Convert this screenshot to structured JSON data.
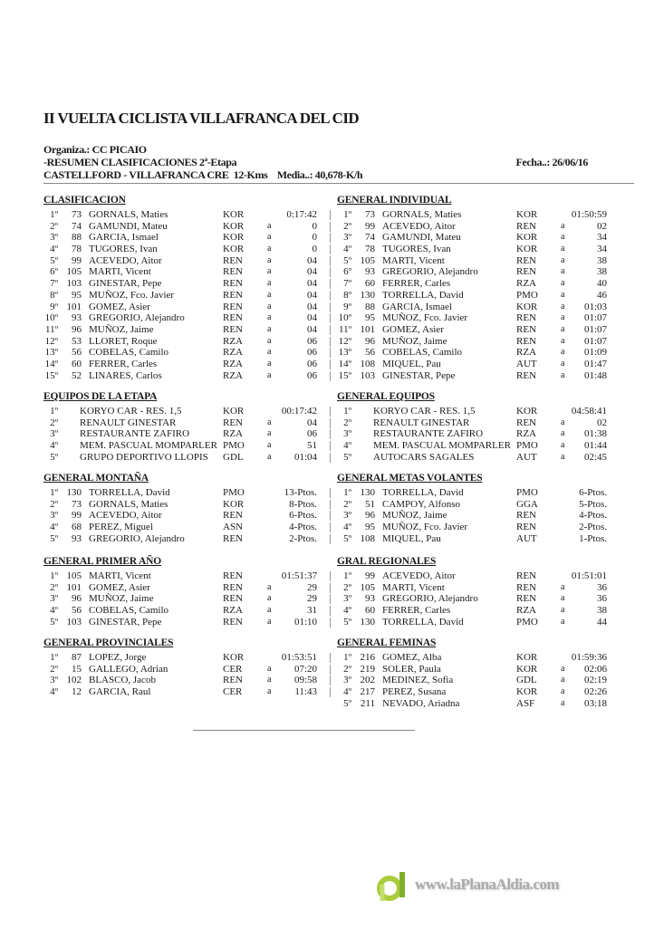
{
  "header": {
    "title": "II VUELTA CICLISTA VILLAFRANCA DEL CID",
    "organiza": "Organiza.: CC PICAIO",
    "resumen": "-RESUMEN CLASIFICACIONES 2ª-Etapa",
    "recorrido": "CASTELLFORD - VILLAFRANCA CRE  12-Kms    Media..: 40,678-K/h",
    "fecha": "Fecha..: 26/06/16"
  },
  "sections": {
    "clasificacion": {
      "title": "CLASIFICACION",
      "rows": [
        [
          "1º",
          "73",
          "GORNALS, Maties",
          "KOR",
          "",
          "0:17:42"
        ],
        [
          "2º",
          "74",
          "GAMUNDI, Mateu",
          "KOR",
          "a",
          "0"
        ],
        [
          "3º",
          "88",
          "GARCIA, Ismael",
          "KOR",
          "a",
          "0"
        ],
        [
          "4º",
          "78",
          "TUGORES, Ivan",
          "KOR",
          "a",
          "0"
        ],
        [
          "5º",
          "99",
          "ACEVEDO, Aitor",
          "REN",
          "a",
          "04"
        ],
        [
          "6º",
          "105",
          "MARTI, Vicent",
          "REN",
          "a",
          "04"
        ],
        [
          "7º",
          "103",
          "GINESTAR, Pepe",
          "REN",
          "a",
          "04"
        ],
        [
          "8º",
          "95",
          "MUÑOZ, Fco. Javier",
          "REN",
          "a",
          "04"
        ],
        [
          "9º",
          "101",
          "GOMEZ, Asier",
          "REN",
          "a",
          "04"
        ],
        [
          "10º",
          "93",
          "GREGORIO, Alejandro",
          "REN",
          "a",
          "04"
        ],
        [
          "11º",
          "96",
          "MUÑOZ, Jaime",
          "REN",
          "a",
          "04"
        ],
        [
          "12º",
          "53",
          "LLORET, Roque",
          "RZA",
          "a",
          "06"
        ],
        [
          "13º",
          "56",
          "COBELAS, Camilo",
          "RZA",
          "a",
          "06"
        ],
        [
          "14º",
          "60",
          "FERRER, Carles",
          "RZA",
          "a",
          "06"
        ],
        [
          "15º",
          "52",
          "LINARES, Carlos",
          "RZA",
          "a",
          "06"
        ]
      ]
    },
    "general_individual": {
      "title": "GENERAL INDIVIDUAL",
      "rows": [
        [
          "1º",
          "73",
          "GORNALS, Maties",
          "KOR",
          "",
          "01:50:59"
        ],
        [
          "2º",
          "99",
          "ACEVEDO, Aitor",
          "REN",
          "a",
          "02"
        ],
        [
          "3º",
          "74",
          "GAMUNDI, Mateu",
          "KOR",
          "a",
          "34"
        ],
        [
          "4º",
          "78",
          "TUGORES, Ivan",
          "KOR",
          "a",
          "34"
        ],
        [
          "5º",
          "105",
          "MARTI, Vicent",
          "REN",
          "a",
          "38"
        ],
        [
          "6º",
          "93",
          "GREGORIO, Alejandro",
          "REN",
          "a",
          "38"
        ],
        [
          "7º",
          "60",
          "FERRER, Carles",
          "RZA",
          "a",
          "40"
        ],
        [
          "8º",
          "130",
          "TORRELLA, David",
          "PMO",
          "a",
          "46"
        ],
        [
          "9º",
          "88",
          "GARCIA, Ismael",
          "KOR",
          "a",
          "01:03"
        ],
        [
          "10º",
          "95",
          "MUÑOZ, Fco. Javier",
          "REN",
          "a",
          "01:07"
        ],
        [
          "11º",
          "101",
          "GOMEZ, Asier",
          "REN",
          "a",
          "01:07"
        ],
        [
          "12º",
          "96",
          "MUÑOZ, Jaime",
          "REN",
          "a",
          "01:07"
        ],
        [
          "13º",
          "56",
          "COBELAS, Camilo",
          "RZA",
          "a",
          "01:09"
        ],
        [
          "14º",
          "108",
          "MIQUEL, Pau",
          "AUT",
          "a",
          "01:47"
        ],
        [
          "15º",
          "103",
          "GINESTAR, Pepe",
          "REN",
          "a",
          "01:48"
        ]
      ]
    },
    "equipos_etapa": {
      "title": "EQUIPOS DE LA ETAPA",
      "rows": [
        [
          "1º",
          "",
          "KORYO CAR - RES. 1,5",
          "KOR",
          "",
          "00:17:42"
        ],
        [
          "2º",
          "",
          "RENAULT GINESTAR",
          "REN",
          "a",
          "04"
        ],
        [
          "3º",
          "",
          "RESTAURANTE ZAFIRO",
          "RZA",
          "a",
          "06"
        ],
        [
          "4º",
          "",
          "MEM. PASCUAL MOMPARLER",
          "PMO",
          "a",
          "51"
        ],
        [
          "5º",
          "",
          "GRUPO DEPORTIVO LLOPIS",
          "GDL",
          "a",
          "01:04"
        ]
      ]
    },
    "general_equipos": {
      "title": "GENERAL EQUIPOS",
      "rows": [
        [
          "1º",
          "",
          "KORYO CAR - RES. 1,5",
          "KOR",
          "",
          "04:58:41"
        ],
        [
          "2º",
          "",
          "RENAULT GINESTAR",
          "REN",
          "a",
          "02"
        ],
        [
          "3º",
          "",
          "RESTAURANTE ZAFIRO",
          "RZA",
          "a",
          "01:38"
        ],
        [
          "4º",
          "",
          "MEM. PASCUAL MOMPARLER",
          "PMO",
          "a",
          "01:44"
        ],
        [
          "5º",
          "",
          "AUTOCARS SAGALES",
          "AUT",
          "a",
          "02:45"
        ]
      ]
    },
    "general_montana": {
      "title": "GENERAL MONTAÑA",
      "rows": [
        [
          "1º",
          "130",
          "TORRELLA, David",
          "PMO",
          "",
          "13-Ptos."
        ],
        [
          "2º",
          "73",
          "GORNALS, Maties",
          "KOR",
          "",
          "8-Ptos."
        ],
        [
          "3º",
          "99",
          "ACEVEDO, Aitor",
          "REN",
          "",
          "6-Ptos."
        ],
        [
          "4º",
          "68",
          "PEREZ, Miguel",
          "ASN",
          "",
          "4-Ptos."
        ],
        [
          "5º",
          "93",
          "GREGORIO, Alejandro",
          "REN",
          "",
          "2-Ptos."
        ]
      ]
    },
    "general_metas_volantes": {
      "title": "GENERAL METAS VOLANTES",
      "rows": [
        [
          "1º",
          "130",
          "TORRELLA, David",
          "PMO",
          "",
          "6-Ptos."
        ],
        [
          "2º",
          "51",
          "CAMPOY, Alfonso",
          "GGA",
          "",
          "5-Ptos."
        ],
        [
          "3º",
          "96",
          "MUÑOZ, Jaime",
          "REN",
          "",
          "4-Ptos."
        ],
        [
          "4º",
          "95",
          "MUÑOZ, Fco. Javier",
          "REN",
          "",
          "2-Ptos."
        ],
        [
          "5º",
          "108",
          "MIQUEL, Pau",
          "AUT",
          "",
          "1-Ptos."
        ]
      ]
    },
    "general_primer_ano": {
      "title": "GENERAL PRIMER AÑO",
      "rows": [
        [
          "1º",
          "105",
          "MARTI, Vicent",
          "REN",
          "",
          "01:51:37"
        ],
        [
          "2º",
          "101",
          "GOMEZ, Asier",
          "REN",
          "a",
          "29"
        ],
        [
          "3º",
          "96",
          "MUÑOZ, Jaime",
          "REN",
          "a",
          "29"
        ],
        [
          "4º",
          "56",
          "COBELAS, Camilo",
          "RZA",
          "a",
          "31"
        ],
        [
          "5º",
          "103",
          "GINESTAR, Pepe",
          "REN",
          "a",
          "01:10"
        ]
      ]
    },
    "gral_regionales": {
      "title": "GRAL REGIONALES",
      "rows": [
        [
          "1º",
          "99",
          "ACEVEDO, Aitor",
          "REN",
          "",
          "01:51:01"
        ],
        [
          "2º",
          "105",
          "MARTI, Vicent",
          "REN",
          "a",
          "36"
        ],
        [
          "3º",
          "93",
          "GREGORIO, Alejandro",
          "REN",
          "a",
          "36"
        ],
        [
          "4º",
          "60",
          "FERRER, Carles",
          "RZA",
          "a",
          "38"
        ],
        [
          "5º",
          "130",
          "TORRELLA, David",
          "PMO",
          "a",
          "44"
        ]
      ]
    },
    "general_provinciales": {
      "title": "GENERAL PROVINCIALES",
      "rows": [
        [
          "1º",
          "87",
          "LOPEZ, Jorge",
          "KOR",
          "",
          "01:53:51"
        ],
        [
          "2º",
          "15",
          "GALLEGO, Adrian",
          "CER",
          "a",
          "07:20"
        ],
        [
          "3º",
          "102",
          "BLASCO, Jacob",
          "REN",
          "a",
          "09:58"
        ],
        [
          "4º",
          "12",
          "GARCIA, Raul",
          "CER",
          "a",
          "11:43"
        ]
      ]
    },
    "general_feminas": {
      "title": "GENERAL FEMINAS",
      "rows": [
        [
          "1º",
          "216",
          "GOMEZ, Alba",
          "KOR",
          "",
          "01:59:36"
        ],
        [
          "2º",
          "219",
          "SOLER, Paula",
          "KOR",
          "a",
          "02:06"
        ],
        [
          "3º",
          "202",
          "MEDINEZ, Sofia",
          "GDL",
          "a",
          "02:19"
        ],
        [
          "4º",
          "217",
          "PEREZ, Susana",
          "KOR",
          "a",
          "02:26"
        ],
        [
          "5º",
          "211",
          "NEVADO, Ariadna",
          "ASF",
          "a",
          "03:18"
        ]
      ]
    }
  },
  "watermark": {
    "text": "www.laPlanaAldia.com",
    "icon": "laplanaaldia-logo-icon",
    "color": "#9bc43a"
  }
}
